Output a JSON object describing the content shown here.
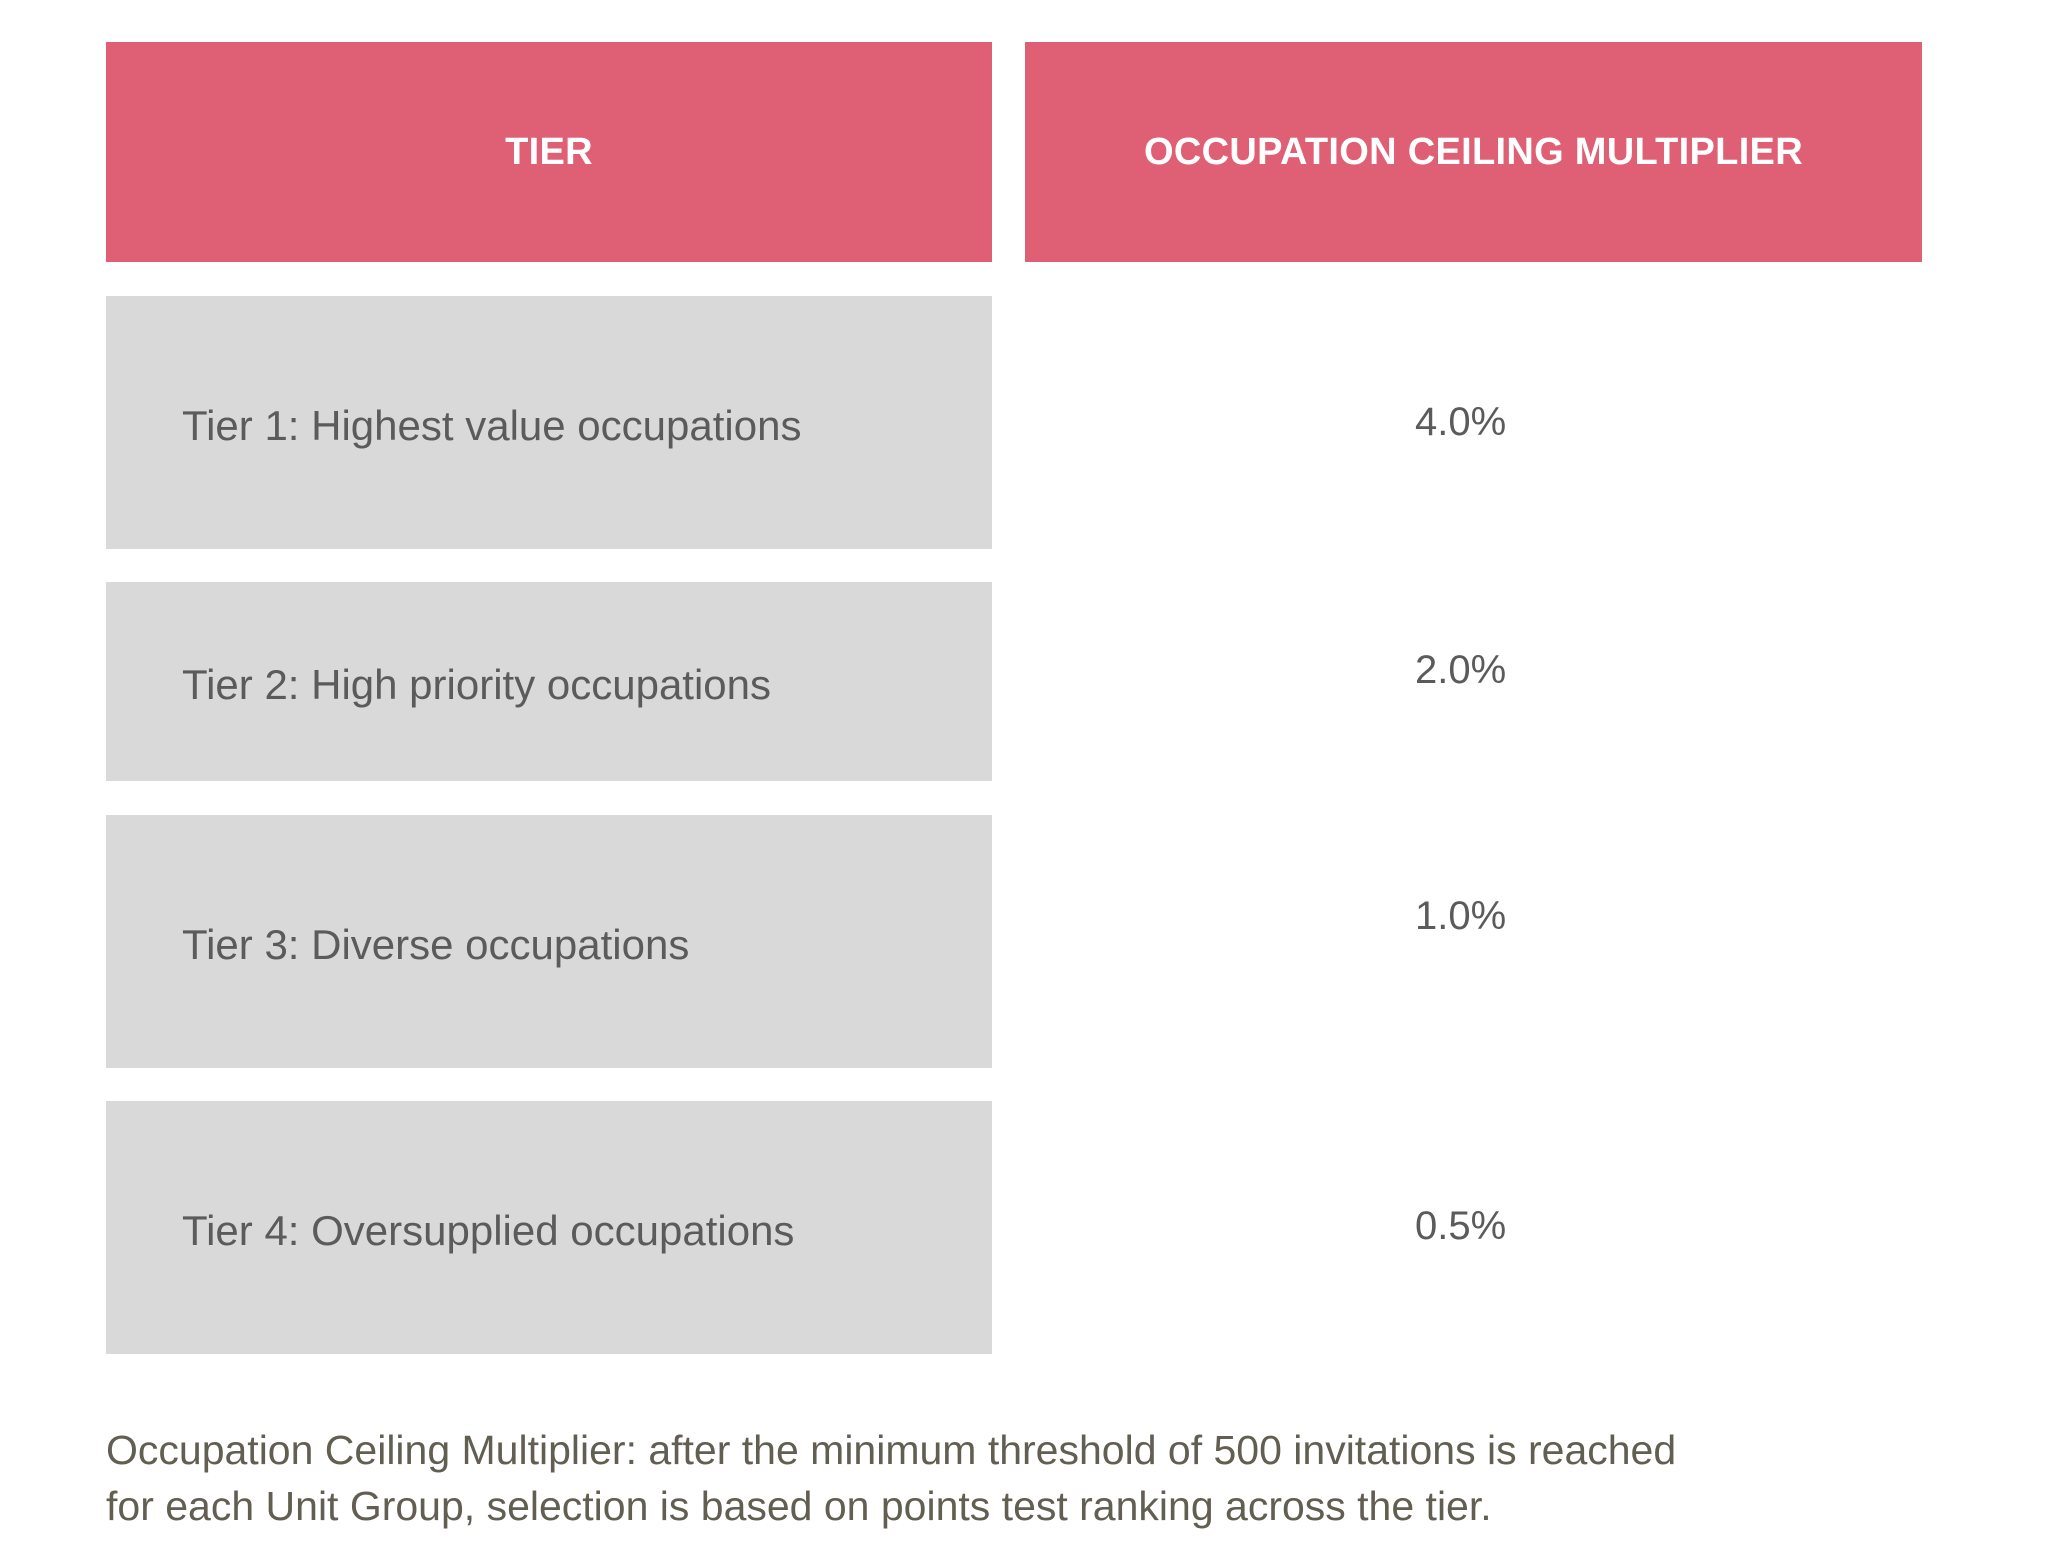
{
  "table": {
    "headers": {
      "tier": "TIER",
      "multiplier": "OCCUPATION CEILING MULTIPLIER"
    },
    "rows": [
      {
        "tier": "Tier 1: Highest value occupations",
        "multiplier": "4.0%"
      },
      {
        "tier": "Tier 2: High priority occupations",
        "multiplier": "2.0%"
      },
      {
        "tier": "Tier 3: Diverse occupations",
        "multiplier": "1.0%"
      },
      {
        "tier": "Tier 4: Oversupplied occupations",
        "multiplier": "0.5%"
      }
    ]
  },
  "footnote": {
    "line1": "Occupation Ceiling Multiplier: after the minimum threshold of 500 invitations is reached",
    "line2": "for each Unit Group, selection is based on points test ranking across the tier."
  },
  "colors": {
    "header_bg": "#df6075",
    "tier_cell_bg": "#d9d9d9",
    "text": "#5b5b5b"
  }
}
